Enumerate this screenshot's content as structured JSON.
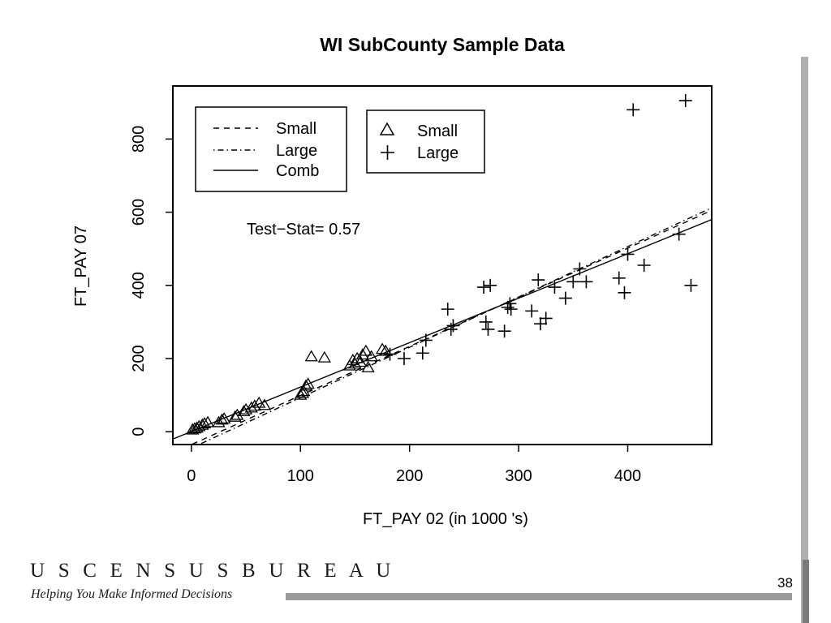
{
  "slide": {
    "page_number": "38",
    "footer_brand": "U S C E N S U S B U R E A U",
    "footer_tagline": "Helping You Make Informed Decisions"
  },
  "chart_data": {
    "type": "scatter",
    "title": "WI SubCounty Sample Data",
    "xlabel": "FT_PAY 02 (in  1000 's)",
    "ylabel": "FT_PAY 07",
    "xlim": [
      -17,
      477
    ],
    "ylim": [
      -35,
      945
    ],
    "x_ticks": [
      0,
      100,
      200,
      300,
      400
    ],
    "y_ticks": [
      0,
      200,
      400,
      600,
      800
    ],
    "grid": false,
    "annotation": "Test−Stat= 0.57",
    "lines_legend": {
      "placement": "top-left",
      "entries": [
        {
          "label": "Small",
          "dash": "dashed"
        },
        {
          "label": "Large",
          "dash": "dot-dash"
        },
        {
          "label": "Comb",
          "dash": "solid"
        }
      ]
    },
    "points_legend": {
      "placement": "top-left-center",
      "entries": [
        {
          "label": "Small",
          "marker": "triangle"
        },
        {
          "label": "Large",
          "marker": "plus"
        }
      ]
    },
    "fit_lines": [
      {
        "name": "Small",
        "dash": "dashed",
        "x": [
          -17,
          477
        ],
        "y": [
          -58,
          605
        ]
      },
      {
        "name": "Large",
        "dash": "dot-dash",
        "x": [
          -17,
          477
        ],
        "y": [
          -68,
          612
        ]
      },
      {
        "name": "Comb",
        "dash": "solid",
        "x": [
          -17,
          477
        ],
        "y": [
          -20,
          580
        ]
      }
    ],
    "series": [
      {
        "name": "Small",
        "marker": "triangle",
        "points": [
          [
            1,
            5
          ],
          [
            3,
            8
          ],
          [
            5,
            10
          ],
          [
            7,
            14
          ],
          [
            10,
            18
          ],
          [
            12,
            22
          ],
          [
            15,
            25
          ],
          [
            25,
            25
          ],
          [
            28,
            32
          ],
          [
            30,
            35
          ],
          [
            40,
            40
          ],
          [
            42,
            45
          ],
          [
            48,
            55
          ],
          [
            50,
            60
          ],
          [
            55,
            65
          ],
          [
            58,
            70
          ],
          [
            62,
            78
          ],
          [
            67,
            72
          ],
          [
            100,
            100
          ],
          [
            102,
            105
          ],
          [
            103,
            110
          ],
          [
            105,
            125
          ],
          [
            107,
            130
          ],
          [
            110,
            205
          ],
          [
            122,
            202
          ],
          [
            145,
            180
          ],
          [
            148,
            195
          ],
          [
            150,
            185
          ],
          [
            152,
            200
          ],
          [
            155,
            190
          ],
          [
            157,
            210
          ],
          [
            160,
            220
          ],
          [
            162,
            175
          ],
          [
            165,
            205
          ],
          [
            175,
            225
          ],
          [
            178,
            220
          ]
        ]
      },
      {
        "name": "Large",
        "marker": "plus",
        "points": [
          [
            182,
            212
          ],
          [
            195,
            200
          ],
          [
            212,
            215
          ],
          [
            215,
            250
          ],
          [
            235,
            335
          ],
          [
            238,
            280
          ],
          [
            240,
            290
          ],
          [
            268,
            395
          ],
          [
            270,
            300
          ],
          [
            272,
            280
          ],
          [
            274,
            400
          ],
          [
            287,
            275
          ],
          [
            290,
            340
          ],
          [
            292,
            350
          ],
          [
            293,
            335
          ],
          [
            312,
            330
          ],
          [
            318,
            415
          ],
          [
            320,
            295
          ],
          [
            325,
            310
          ],
          [
            333,
            395
          ],
          [
            343,
            365
          ],
          [
            350,
            410
          ],
          [
            356,
            445
          ],
          [
            362,
            410
          ],
          [
            392,
            420
          ],
          [
            397,
            380
          ],
          [
            400,
            485
          ],
          [
            405,
            880
          ],
          [
            415,
            455
          ],
          [
            447,
            540
          ],
          [
            453,
            905
          ],
          [
            458,
            400
          ]
        ]
      }
    ]
  }
}
